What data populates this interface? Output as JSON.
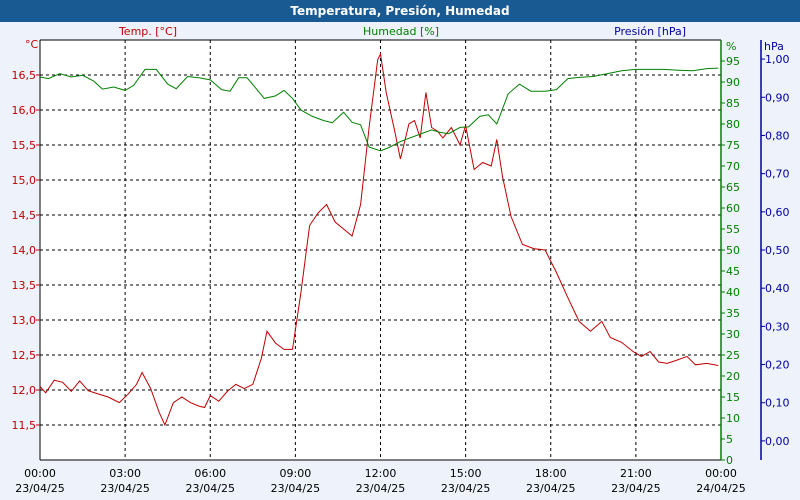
{
  "window": {
    "title": "Temperatura, Presión, Humedad"
  },
  "colors": {
    "title_bar": "#1a5a93",
    "temperature": "#c00000",
    "humidity": "#008000",
    "pressure": "#0000a0",
    "plot_background": "#ffffff",
    "panel_background": "#eef3fb",
    "grid": "#000000"
  },
  "chart_data": {
    "type": "line",
    "title": "Temperatura, Presión, Humedad",
    "grid": true,
    "grid_style": "dashed",
    "x_ticks": [
      {
        "time": "00:00",
        "date": "23/04/25"
      },
      {
        "time": "03:00",
        "date": "23/04/25"
      },
      {
        "time": "06:00",
        "date": "23/04/25"
      },
      {
        "time": "09:00",
        "date": "23/04/25"
      },
      {
        "time": "12:00",
        "date": "23/04/25"
      },
      {
        "time": "15:00",
        "date": "23/04/25"
      },
      {
        "time": "18:00",
        "date": "23/04/25"
      },
      {
        "time": "21:00",
        "date": "23/04/25"
      },
      {
        "time": "00:00",
        "date": "24/04/25"
      }
    ],
    "x_range_hours": [
      0,
      24
    ],
    "axes": {
      "temperature": {
        "unit": "°C",
        "side": "left",
        "range": [
          11.0,
          17.0
        ],
        "ticks": [
          "11,5",
          "12,0",
          "12,5",
          "13,0",
          "13,5",
          "14,0",
          "14,5",
          "15,0",
          "15,5",
          "16,0",
          "16,5"
        ],
        "tick_values": [
          11.5,
          12.0,
          12.5,
          13.0,
          13.5,
          14.0,
          14.5,
          15.0,
          15.5,
          16.0,
          16.5
        ]
      },
      "humidity": {
        "unit": "%",
        "side": "right-inner",
        "range": [
          0,
          100
        ],
        "ticks": [
          "0",
          "5",
          "10",
          "15",
          "20",
          "25",
          "30",
          "35",
          "40",
          "45",
          "50",
          "55",
          "60",
          "65",
          "70",
          "75",
          "80",
          "85",
          "90",
          "95"
        ],
        "tick_values": [
          0,
          5,
          10,
          15,
          20,
          25,
          30,
          35,
          40,
          45,
          50,
          55,
          60,
          65,
          70,
          75,
          80,
          85,
          90,
          95
        ]
      },
      "pressure": {
        "unit": "hPa",
        "side": "right-outer",
        "range": [
          -0.05,
          1.05
        ],
        "ticks": [
          "0,00",
          "0,10",
          "0,20",
          "0,30",
          "0,40",
          "0,50",
          "0,60",
          "0,70",
          "0,80",
          "0,90",
          "1,00"
        ],
        "tick_values": [
          0.0,
          0.1,
          0.2,
          0.3,
          0.4,
          0.5,
          0.6,
          0.7,
          0.8,
          0.9,
          1.0
        ]
      }
    },
    "series": [
      {
        "name": "Temp. [°C]",
        "axis": "temperature",
        "points": [
          [
            0.0,
            12.05
          ],
          [
            0.2,
            11.96
          ],
          [
            0.5,
            12.14
          ],
          [
            0.8,
            12.11
          ],
          [
            1.1,
            11.98
          ],
          [
            1.4,
            12.13
          ],
          [
            1.7,
            11.99
          ],
          [
            2.0,
            11.95
          ],
          [
            2.4,
            11.9
          ],
          [
            2.8,
            11.82
          ],
          [
            3.1,
            11.94
          ],
          [
            3.4,
            12.08
          ],
          [
            3.6,
            12.25
          ],
          [
            3.9,
            12.02
          ],
          [
            4.2,
            11.68
          ],
          [
            4.4,
            11.5
          ],
          [
            4.7,
            11.82
          ],
          [
            5.0,
            11.9
          ],
          [
            5.3,
            11.82
          ],
          [
            5.6,
            11.77
          ],
          [
            5.8,
            11.75
          ],
          [
            6.0,
            11.92
          ],
          [
            6.3,
            11.84
          ],
          [
            6.6,
            11.98
          ],
          [
            6.9,
            12.08
          ],
          [
            7.2,
            12.02
          ],
          [
            7.5,
            12.08
          ],
          [
            7.8,
            12.45
          ],
          [
            8.0,
            12.84
          ],
          [
            8.3,
            12.67
          ],
          [
            8.6,
            12.58
          ],
          [
            8.9,
            12.58
          ],
          [
            9.2,
            13.4
          ],
          [
            9.5,
            14.35
          ],
          [
            9.8,
            14.53
          ],
          [
            10.1,
            14.65
          ],
          [
            10.4,
            14.4
          ],
          [
            10.7,
            14.3
          ],
          [
            11.0,
            14.2
          ],
          [
            11.3,
            14.65
          ],
          [
            11.6,
            15.75
          ],
          [
            11.9,
            16.72
          ],
          [
            12.0,
            16.8
          ],
          [
            12.2,
            16.25
          ],
          [
            12.5,
            15.7
          ],
          [
            12.7,
            15.3
          ],
          [
            13.0,
            15.8
          ],
          [
            13.2,
            15.85
          ],
          [
            13.4,
            15.6
          ],
          [
            13.6,
            16.25
          ],
          [
            13.8,
            15.75
          ],
          [
            14.0,
            15.7
          ],
          [
            14.2,
            15.6
          ],
          [
            14.5,
            15.75
          ],
          [
            14.8,
            15.5
          ],
          [
            15.0,
            15.78
          ],
          [
            15.3,
            15.15
          ],
          [
            15.6,
            15.25
          ],
          [
            15.9,
            15.2
          ],
          [
            16.1,
            15.58
          ],
          [
            16.3,
            15.05
          ],
          [
            16.6,
            14.48
          ],
          [
            17.0,
            14.08
          ],
          [
            17.4,
            14.02
          ],
          [
            17.8,
            14.0
          ],
          [
            18.2,
            13.68
          ],
          [
            18.6,
            13.32
          ],
          [
            19.0,
            12.98
          ],
          [
            19.4,
            12.84
          ],
          [
            19.8,
            12.98
          ],
          [
            20.1,
            12.75
          ],
          [
            20.5,
            12.68
          ],
          [
            20.9,
            12.55
          ],
          [
            21.2,
            12.48
          ],
          [
            21.5,
            12.55
          ],
          [
            21.8,
            12.4
          ],
          [
            22.1,
            12.38
          ],
          [
            22.4,
            12.42
          ],
          [
            22.8,
            12.48
          ],
          [
            23.1,
            12.36
          ],
          [
            23.5,
            12.38
          ],
          [
            23.9,
            12.35
          ]
        ]
      },
      {
        "name": "Humedad [%]",
        "axis": "humidity",
        "points": [
          [
            0.0,
            91.2
          ],
          [
            0.3,
            90.8
          ],
          [
            0.7,
            92.0
          ],
          [
            1.1,
            91.2
          ],
          [
            1.5,
            91.6
          ],
          [
            1.9,
            90.2
          ],
          [
            2.2,
            88.3
          ],
          [
            2.6,
            88.8
          ],
          [
            3.0,
            88.0
          ],
          [
            3.3,
            89.2
          ],
          [
            3.7,
            93.0
          ],
          [
            4.1,
            93.0
          ],
          [
            4.5,
            89.5
          ],
          [
            4.8,
            88.4
          ],
          [
            5.2,
            91.3
          ],
          [
            5.6,
            91.0
          ],
          [
            6.0,
            90.5
          ],
          [
            6.4,
            88.2
          ],
          [
            6.7,
            87.8
          ],
          [
            7.0,
            91.0
          ],
          [
            7.3,
            91.0
          ],
          [
            7.6,
            88.6
          ],
          [
            7.9,
            86.1
          ],
          [
            8.3,
            86.7
          ],
          [
            8.6,
            88.0
          ],
          [
            8.9,
            86.1
          ],
          [
            9.2,
            83.3
          ],
          [
            9.6,
            81.8
          ],
          [
            10.0,
            80.8
          ],
          [
            10.3,
            80.3
          ],
          [
            10.7,
            82.8
          ],
          [
            11.0,
            80.4
          ],
          [
            11.3,
            79.8
          ],
          [
            11.6,
            74.5
          ],
          [
            12.0,
            73.6
          ],
          [
            12.3,
            74.4
          ],
          [
            12.7,
            75.8
          ],
          [
            13.0,
            76.6
          ],
          [
            13.4,
            77.6
          ],
          [
            13.8,
            78.6
          ],
          [
            14.1,
            78.0
          ],
          [
            14.4,
            77.7
          ],
          [
            14.8,
            79.2
          ],
          [
            15.1,
            79.3
          ],
          [
            15.5,
            81.8
          ],
          [
            15.8,
            82.2
          ],
          [
            16.1,
            80.0
          ],
          [
            16.5,
            87.2
          ],
          [
            16.9,
            89.5
          ],
          [
            17.3,
            87.8
          ],
          [
            17.8,
            87.8
          ],
          [
            18.2,
            88.2
          ],
          [
            18.6,
            90.8
          ],
          [
            19.0,
            91.1
          ],
          [
            19.5,
            91.3
          ],
          [
            20.0,
            92.0
          ],
          [
            20.5,
            92.7
          ],
          [
            21.0,
            93.0
          ],
          [
            21.5,
            93.0
          ],
          [
            22.0,
            93.0
          ],
          [
            22.5,
            92.8
          ],
          [
            23.0,
            92.7
          ],
          [
            23.5,
            93.2
          ],
          [
            23.9,
            93.3
          ]
        ]
      },
      {
        "name": "Presión [hPa]",
        "axis": "pressure",
        "points": []
      }
    ]
  }
}
